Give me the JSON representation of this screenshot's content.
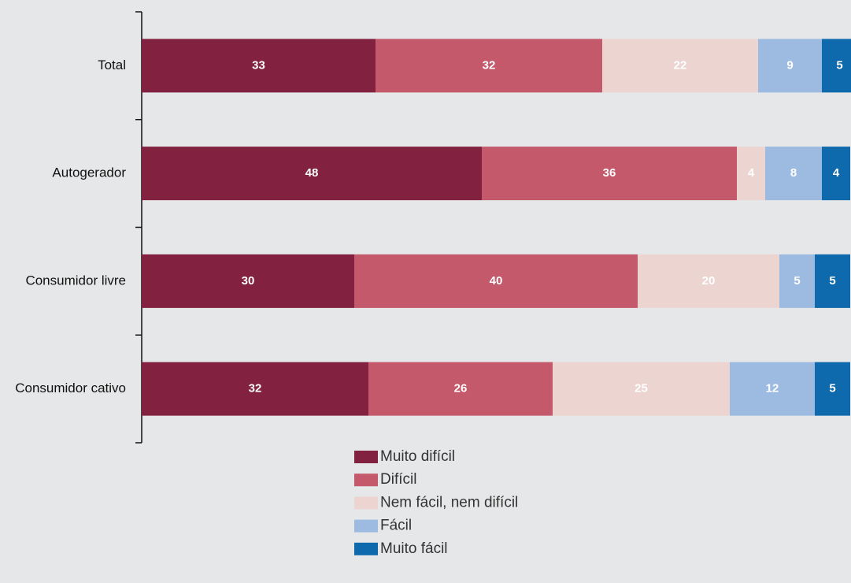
{
  "chart_data": {
    "type": "stacked-bar-horizontal",
    "categories": [
      "Total",
      "Autogerador",
      "Consumidor livre",
      "Consumidor cativo"
    ],
    "series": [
      {
        "name": "Muito difícil",
        "color": "#832240",
        "values": [
          33,
          48,
          30,
          32
        ]
      },
      {
        "name": "Difícil",
        "color": "#c4596b",
        "values": [
          32,
          36,
          40,
          26
        ]
      },
      {
        "name": "Nem fácil, nem difícil",
        "color": "#ecd5d0",
        "values": [
          22,
          4,
          20,
          25
        ]
      },
      {
        "name": "Fácil",
        "color": "#9dbbe0",
        "values": [
          9,
          8,
          5,
          12
        ]
      },
      {
        "name": "Muito fácil",
        "color": "#0e6aad",
        "values": [
          5,
          4,
          5,
          5
        ]
      }
    ]
  }
}
